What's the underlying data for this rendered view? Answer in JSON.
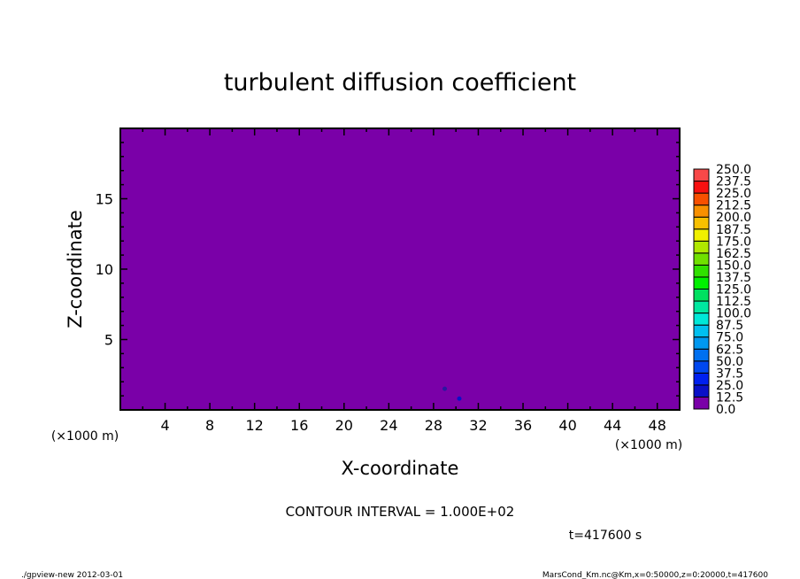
{
  "chart_data": {
    "type": "heatmap",
    "title": "turbulent diffusion coefficient",
    "xlabel": "X-coordinate",
    "ylabel": "Z-coordinate",
    "x_unit": "(×1000 m)",
    "y_unit": "(×1000 m)",
    "xlim": [
      0,
      50
    ],
    "ylim": [
      0,
      20
    ],
    "x_ticks": [
      4,
      8,
      12,
      16,
      20,
      24,
      28,
      32,
      36,
      40,
      44,
      48
    ],
    "y_ticks": [
      5,
      10,
      15
    ],
    "field_value_background": 0.0,
    "small_features": [
      {
        "x": 30.3,
        "z": 0.8,
        "level": 25.0
      },
      {
        "x": 29.0,
        "z": 1.5,
        "level": 12.5
      }
    ],
    "colorbar": {
      "levels": [
        "0.0",
        "12.5",
        "25.0",
        "37.5",
        "50.0",
        "62.5",
        "75.0",
        "87.5",
        "100.0",
        "112.5",
        "125.0",
        "137.5",
        "150.0",
        "162.5",
        "175.0",
        "187.5",
        "200.0",
        "212.5",
        "225.0",
        "237.5",
        "250.0"
      ],
      "colors": [
        "#7a00a8",
        "#2a16a0",
        "#0a10c8",
        "#0020f0",
        "#0048f0",
        "#0070f0",
        "#0098f0",
        "#00c0f0",
        "#00e8d8",
        "#00e8a0",
        "#00e060",
        "#00f000",
        "#30e000",
        "#70e000",
        "#b0e800",
        "#f0f000",
        "#f8c000",
        "#f89000",
        "#f85000",
        "#f81010",
        "#f84848",
        "#f88080"
      ]
    },
    "contour_interval": "CONTOUR INTERVAL = 1.000E+02",
    "time_label": "t=417600 s",
    "footer_left": "./gpview-new  2012-03-01",
    "footer_right": "MarsCond_Km.nc@Km,x=0:50000,z=0:20000,t=417600"
  }
}
